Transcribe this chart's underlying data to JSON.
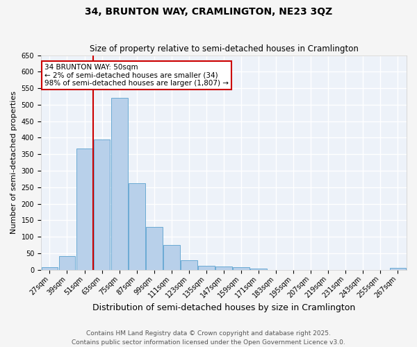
{
  "title": "34, BRUNTON WAY, CRAMLINGTON, NE23 3QZ",
  "subtitle": "Size of property relative to semi-detached houses in Cramlington",
  "xlabel": "Distribution of semi-detached houses by size in Cramlington",
  "ylabel": "Number of semi-detached properties",
  "bar_labels": [
    "27sqm",
    "39sqm",
    "51sqm",
    "63sqm",
    "75sqm",
    "87sqm",
    "99sqm",
    "111sqm",
    "123sqm",
    "135sqm",
    "147sqm",
    "159sqm",
    "171sqm",
    "183sqm",
    "195sqm",
    "207sqm",
    "219sqm",
    "231sqm",
    "243sqm",
    "255sqm",
    "267sqm"
  ],
  "bar_values": [
    8,
    42,
    368,
    395,
    520,
    263,
    130,
    76,
    30,
    12,
    10,
    8,
    3,
    0,
    0,
    0,
    0,
    0,
    0,
    0,
    5
  ],
  "bar_color": "#b8d0ea",
  "bar_edge_color": "#6aaad4",
  "vline_x_index": 2.5,
  "vline_color": "#cc0000",
  "ylim": [
    0,
    650
  ],
  "yticks": [
    0,
    50,
    100,
    150,
    200,
    250,
    300,
    350,
    400,
    450,
    500,
    550,
    600,
    650
  ],
  "annotation_title": "34 BRUNTON WAY: 50sqm",
  "annotation_line1": "← 2% of semi-detached houses are smaller (34)",
  "annotation_line2": "98% of semi-detached houses are larger (1,807) →",
  "annotation_box_color": "#ffffff",
  "annotation_box_edge_color": "#cc0000",
  "footnote1": "Contains HM Land Registry data © Crown copyright and database right 2025.",
  "footnote2": "Contains public sector information licensed under the Open Government Licence v3.0.",
  "bg_color": "#edf2f9",
  "grid_color": "#ffffff",
  "title_fontsize": 10,
  "subtitle_fontsize": 8.5,
  "xlabel_fontsize": 9,
  "ylabel_fontsize": 8,
  "tick_fontsize": 7,
  "annotation_fontsize": 7.5,
  "footnote_fontsize": 6.5
}
